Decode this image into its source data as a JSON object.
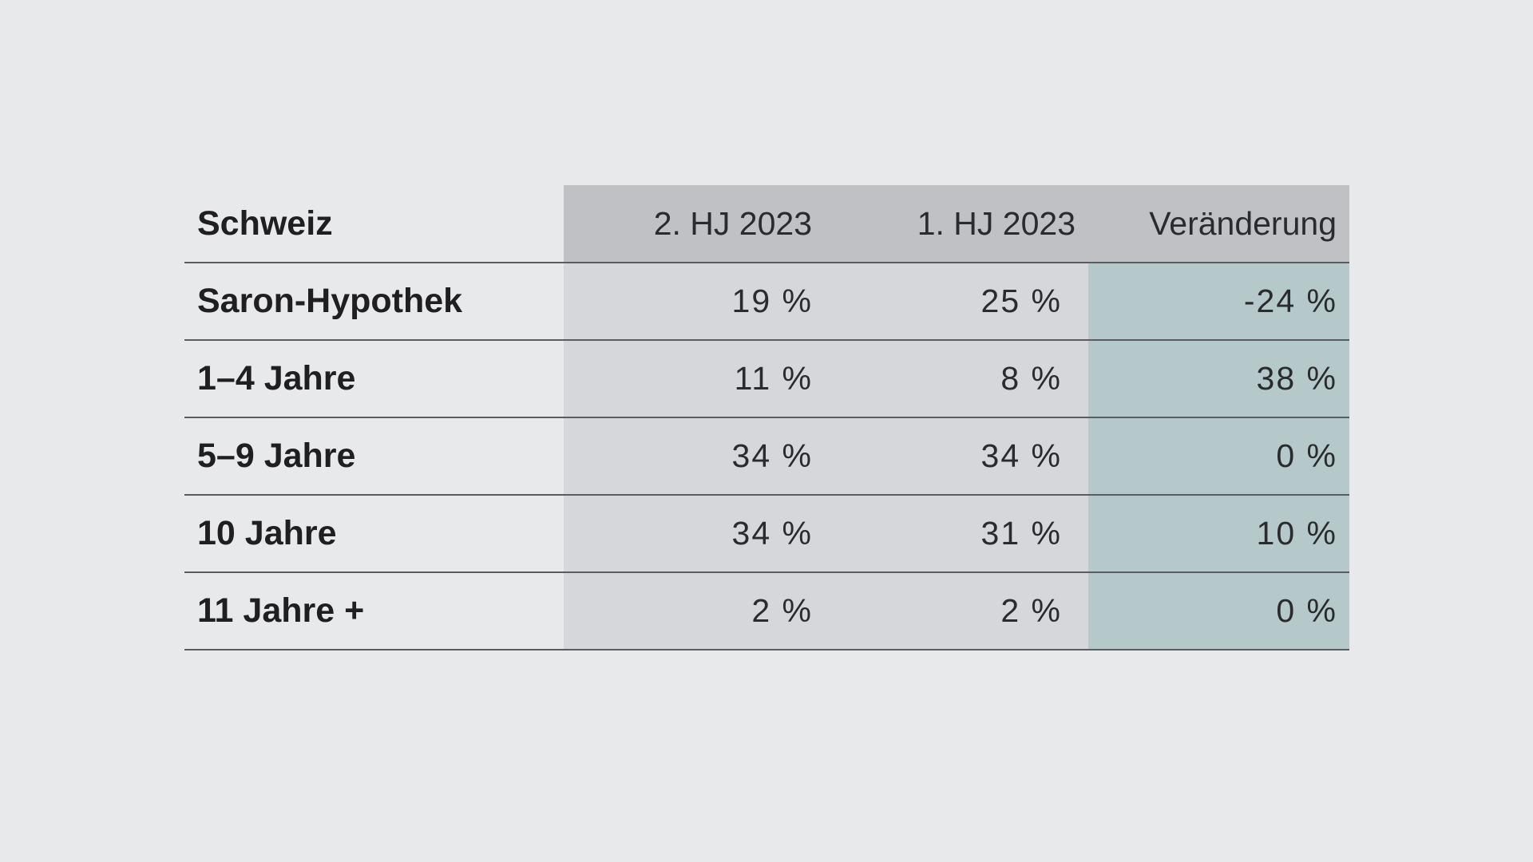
{
  "chart_data": {
    "type": "table",
    "title": "",
    "corner_label": "Schweiz",
    "columns": [
      "2. HJ 2023",
      "1. HJ 2023",
      "Veränderung"
    ],
    "rows": [
      {
        "label": "Saron-Hypothek",
        "values": [
          "19 %",
          "25 %",
          "-24 %"
        ]
      },
      {
        "label": "1–4 Jahre",
        "values": [
          "11 %",
          "8 %",
          "38 %"
        ]
      },
      {
        "label": "5–9 Jahre",
        "values": [
          "34 %",
          "34 %",
          "0 %"
        ]
      },
      {
        "label": "10 Jahre",
        "values": [
          "34 %",
          "31 %",
          "10 %"
        ]
      },
      {
        "label": "11 Jahre +",
        "values": [
          "2 %",
          "2 %",
          "0 %"
        ]
      }
    ]
  },
  "colors": {
    "background": "#e8e9eb",
    "header_fill": "#bfc1c5",
    "value_fill": "#d6d7da",
    "change_fill": "#b6c9ca",
    "rule": "#5a5c60"
  }
}
